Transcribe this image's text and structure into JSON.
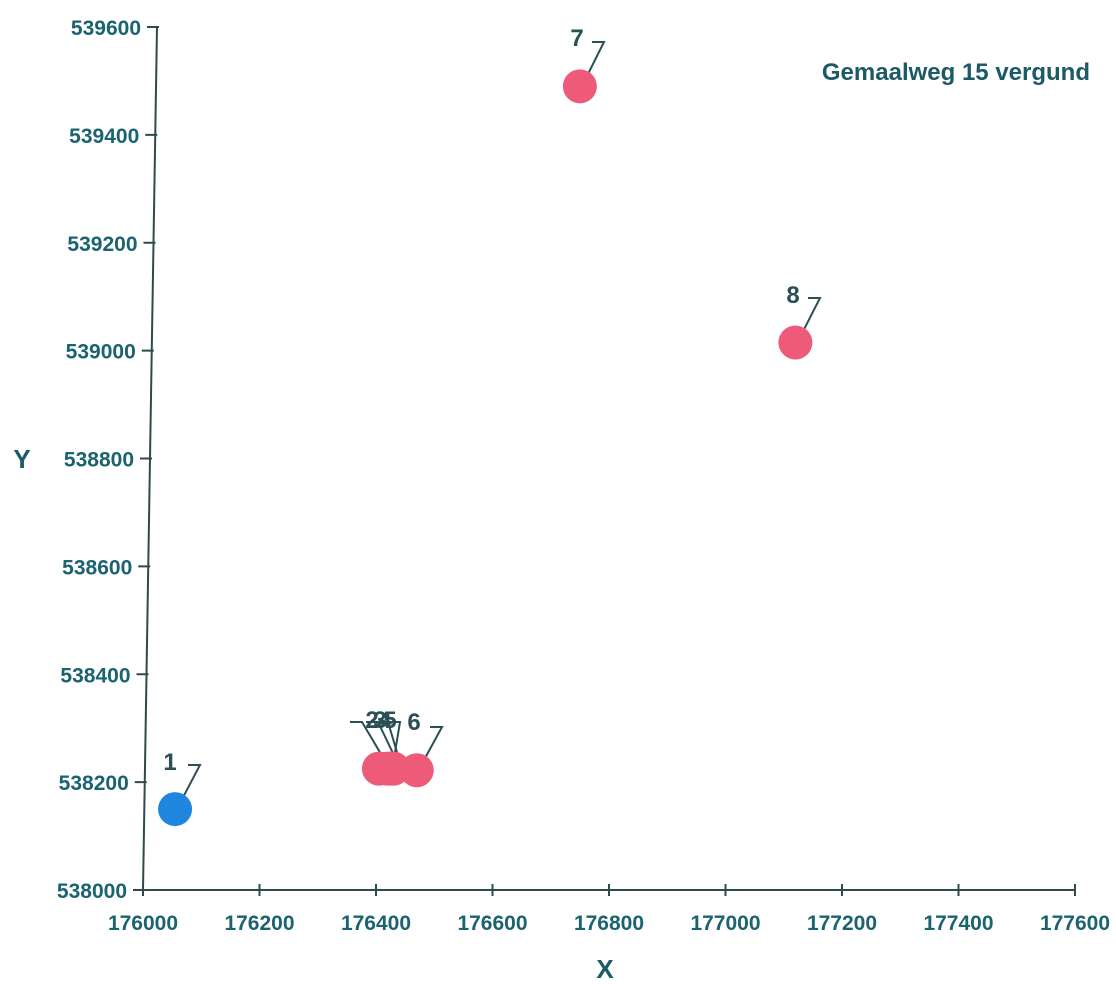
{
  "chart_data": {
    "type": "scatter",
    "title": "Gemaalweg 15 vergund",
    "xlabel": "X",
    "ylabel": "Y",
    "xlim": [
      176000,
      177600
    ],
    "ylim": [
      538000,
      539600
    ],
    "x_ticks": [
      "176000",
      "176200",
      "176400",
      "176600",
      "176800",
      "177000",
      "177200",
      "177400",
      "177600"
    ],
    "y_ticks": [
      "538000",
      "538200",
      "538400",
      "538600",
      "538800",
      "539000",
      "539200",
      "539400",
      "539600"
    ],
    "legend": "none",
    "grid": false,
    "points": [
      {
        "label": "1",
        "x": 176055,
        "y": 538150,
        "color": "#1f86e0"
      },
      {
        "label": "2",
        "x": 176405,
        "y": 538225,
        "color": "#ee5b78"
      },
      {
        "label": "3",
        "x": 176420,
        "y": 538225,
        "color": "#ee5b78"
      },
      {
        "label": "4",
        "x": 176425,
        "y": 538225,
        "color": "#ee5b78"
      },
      {
        "label": "5",
        "x": 176430,
        "y": 538225,
        "color": "#ee5b78"
      },
      {
        "label": "6",
        "x": 176470,
        "y": 538222,
        "color": "#ee5b78"
      },
      {
        "label": "7",
        "x": 176750,
        "y": 539490,
        "color": "#ee5b78"
      },
      {
        "label": "8",
        "x": 177120,
        "y": 539015,
        "color": "#ee5b78"
      }
    ]
  }
}
